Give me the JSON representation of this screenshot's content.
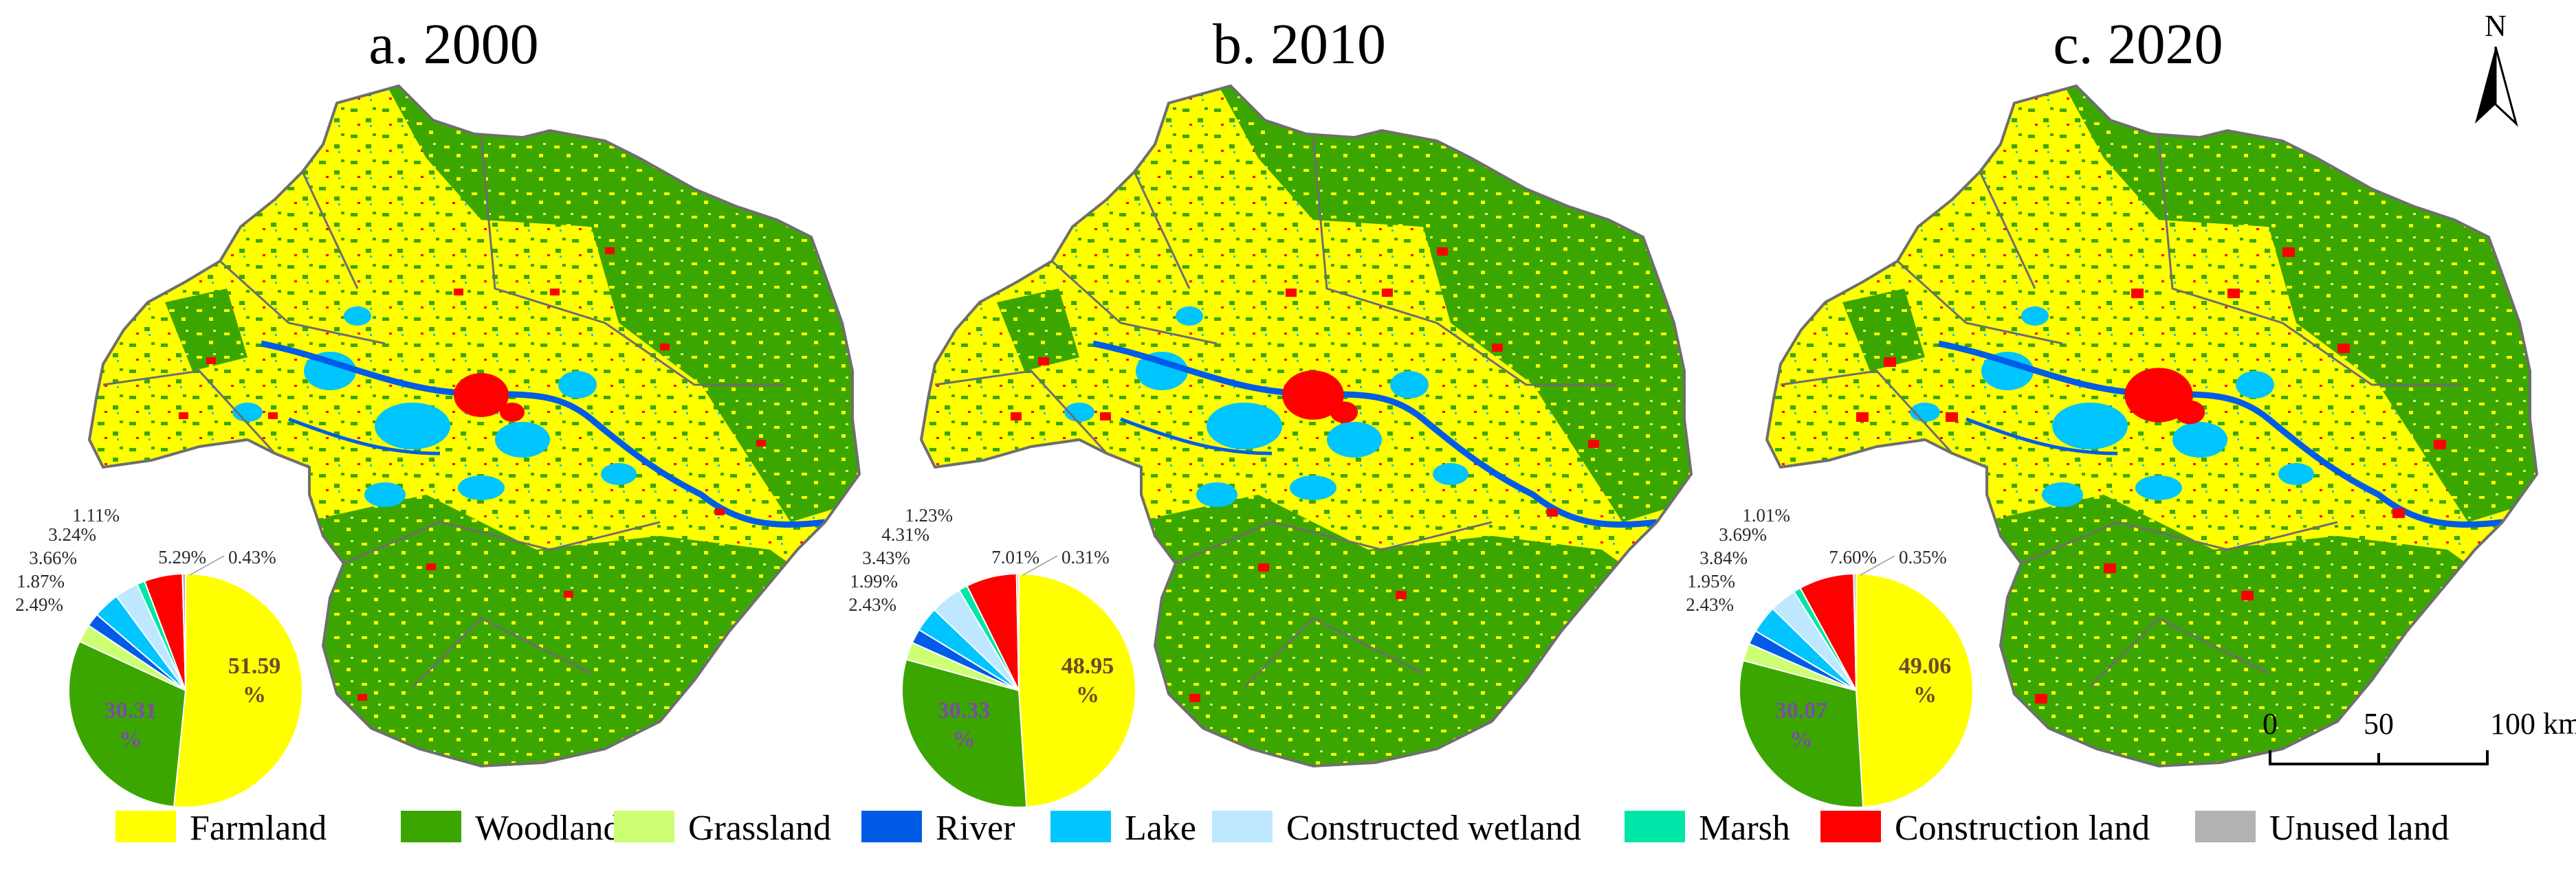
{
  "colors": {
    "farmland": "#ffff00",
    "woodland": "#3ca600",
    "grassland": "#ccff73",
    "river": "#005ce6",
    "lake": "#00c5ff",
    "constructed_wetland": "#bee8ff",
    "marsh": "#00e6a9",
    "construction_land": "#ff0000",
    "unused_land": "#b2b2b2",
    "boundary": "#6e6e6e"
  },
  "panels": [
    {
      "title": "a. 2000",
      "pie": {
        "farmland": "51.59 %",
        "woodland": "30.31 %",
        "grassland": "2.49%",
        "river": "1.87%",
        "lake": "3.66%",
        "constructed_wetland": "3.24%",
        "marsh": "1.11%",
        "construction_land": "5.29%",
        "unused_land": "0.43%"
      },
      "values": [
        51.59,
        30.31,
        2.49,
        1.87,
        3.66,
        3.24,
        1.11,
        5.29,
        0.43
      ]
    },
    {
      "title": "b. 2010",
      "pie": {
        "farmland": "48.95 %",
        "woodland": "30.33 %",
        "grassland": "2.43%",
        "river": "1.99%",
        "lake": "3.43%",
        "constructed_wetland": "4.31%",
        "marsh": "1.23%",
        "construction_land": "7.01%",
        "unused_land": "0.31%"
      },
      "values": [
        48.95,
        30.33,
        2.43,
        1.99,
        3.43,
        4.31,
        1.23,
        7.01,
        0.31
      ]
    },
    {
      "title": "c. 2020",
      "pie": {
        "farmland": "49.06 %",
        "woodland": "30.07 %",
        "grassland": "2.43%",
        "river": "1.95%",
        "lake": "3.84%",
        "constructed_wetland": "3.69%",
        "marsh": "1.01%",
        "construction_land": "7.60%",
        "unused_land": "0.35%"
      },
      "values": [
        49.06,
        30.07,
        2.43,
        1.95,
        3.84,
        3.69,
        1.01,
        7.6,
        0.35
      ]
    }
  ],
  "legend": [
    {
      "key": "farmland",
      "label": "Farmland"
    },
    {
      "key": "woodland",
      "label": "Woodland"
    },
    {
      "key": "grassland",
      "label": "Grassland"
    },
    {
      "key": "river",
      "label": "River"
    },
    {
      "key": "lake",
      "label": "Lake"
    },
    {
      "key": "constructed_wetland",
      "label": "Constructed wetland"
    },
    {
      "key": "marsh",
      "label": "Marsh"
    },
    {
      "key": "construction_land",
      "label": "Construction land"
    },
    {
      "key": "unused_land",
      "label": "Unused land"
    }
  ],
  "scale_bar": {
    "label_0": "0",
    "label_50": "50",
    "label_100": "100 km"
  },
  "north_arrow": {
    "label": "N"
  }
}
